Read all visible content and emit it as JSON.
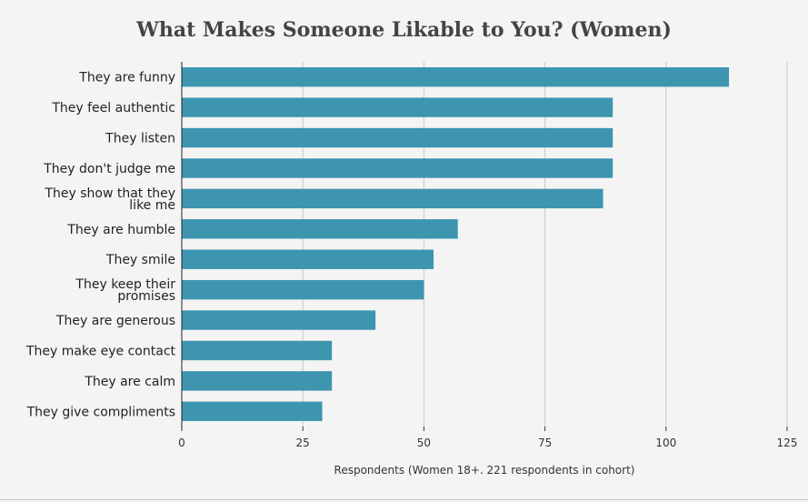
{
  "chart_data": {
    "type": "bar",
    "orientation": "horizontal",
    "title": "What Makes Someone Likable to You? (Women)",
    "xlabel": "Respondents (Women 18+. 221 respondents in cohort)",
    "ylabel": "",
    "xlim": [
      0,
      125
    ],
    "xticks": [
      0,
      25,
      50,
      75,
      100,
      125
    ],
    "grid": true,
    "legend": "none",
    "bar_color": "#3d95b0",
    "categories": [
      [
        "They are funny"
      ],
      [
        "They feel authentic"
      ],
      [
        "They listen"
      ],
      [
        "They don't judge me"
      ],
      [
        "They show that they",
        "like me"
      ],
      [
        "They are humble"
      ],
      [
        "They smile"
      ],
      [
        "They keep their",
        "promises"
      ],
      [
        "They are generous"
      ],
      [
        "They make eye contact"
      ],
      [
        "They are calm"
      ],
      [
        "They give compliments"
      ]
    ],
    "values": [
      113,
      89,
      89,
      89,
      87,
      57,
      52,
      50,
      40,
      31,
      31,
      29
    ]
  }
}
